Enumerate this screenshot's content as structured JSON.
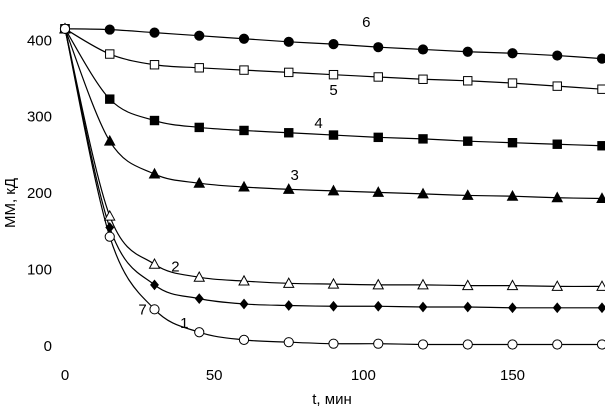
{
  "chart_data": {
    "type": "line",
    "xlabel": "t, мин",
    "ylabel": "ММ, кД",
    "xlim": [
      0,
      180
    ],
    "ylim": [
      0,
      420
    ],
    "xticks": [
      0,
      50,
      100,
      150
    ],
    "yticks": [
      0,
      100,
      200,
      300,
      400
    ],
    "grid": false,
    "legend": "none",
    "series": [
      {
        "name": "1",
        "marker": "diamond-filled",
        "label_at": [
          40,
          30
        ],
        "x": [
          0,
          15,
          30,
          45,
          60,
          75,
          90,
          105,
          120,
          135,
          150,
          165,
          180
        ],
        "y": [
          415,
          155,
          80,
          62,
          55,
          53,
          52,
          52,
          51,
          51,
          50,
          50,
          50
        ]
      },
      {
        "name": "2",
        "marker": "triangle-open",
        "label_at": [
          37,
          104
        ],
        "x": [
          0,
          15,
          30,
          45,
          60,
          75,
          90,
          105,
          120,
          135,
          150,
          165,
          180
        ],
        "y": [
          415,
          170,
          107,
          90,
          85,
          82,
          81,
          80,
          80,
          79,
          79,
          78,
          78
        ]
      },
      {
        "name": "3",
        "marker": "triangle-filled",
        "label_at": [
          77,
          224
        ],
        "x": [
          0,
          15,
          30,
          45,
          60,
          75,
          90,
          105,
          120,
          135,
          150,
          165,
          180
        ],
        "y": [
          415,
          268,
          225,
          213,
          208,
          205,
          203,
          201,
          199,
          197,
          196,
          194,
          193
        ]
      },
      {
        "name": "4",
        "marker": "square-filled",
        "label_at": [
          85,
          292
        ],
        "x": [
          0,
          15,
          30,
          45,
          60,
          75,
          90,
          105,
          120,
          135,
          150,
          165,
          180
        ],
        "y": [
          415,
          323,
          295,
          286,
          282,
          279,
          276,
          273,
          271,
          268,
          266,
          264,
          262
        ]
      },
      {
        "name": "5",
        "marker": "square-open",
        "label_at": [
          90,
          335
        ],
        "x": [
          0,
          15,
          30,
          45,
          60,
          75,
          90,
          105,
          120,
          135,
          150,
          165,
          180
        ],
        "y": [
          415,
          382,
          368,
          364,
          361,
          358,
          355,
          352,
          349,
          347,
          344,
          340,
          336
        ]
      },
      {
        "name": "6",
        "marker": "circle-filled",
        "label_at": [
          101,
          424
        ],
        "x": [
          0,
          15,
          30,
          45,
          60,
          75,
          90,
          105,
          120,
          135,
          150,
          165,
          180
        ],
        "y": [
          415,
          414,
          410,
          406,
          402,
          398,
          395,
          391,
          388,
          385,
          383,
          380,
          376
        ]
      },
      {
        "name": "7",
        "marker": "circle-open",
        "label_at": [
          26,
          48
        ],
        "x": [
          0,
          15,
          30,
          45,
          60,
          75,
          90,
          105,
          120,
          135,
          150,
          165,
          180
        ],
        "y": [
          415,
          143,
          48,
          18,
          8,
          5,
          3,
          3,
          2,
          2,
          2,
          2,
          2
        ]
      }
    ]
  }
}
